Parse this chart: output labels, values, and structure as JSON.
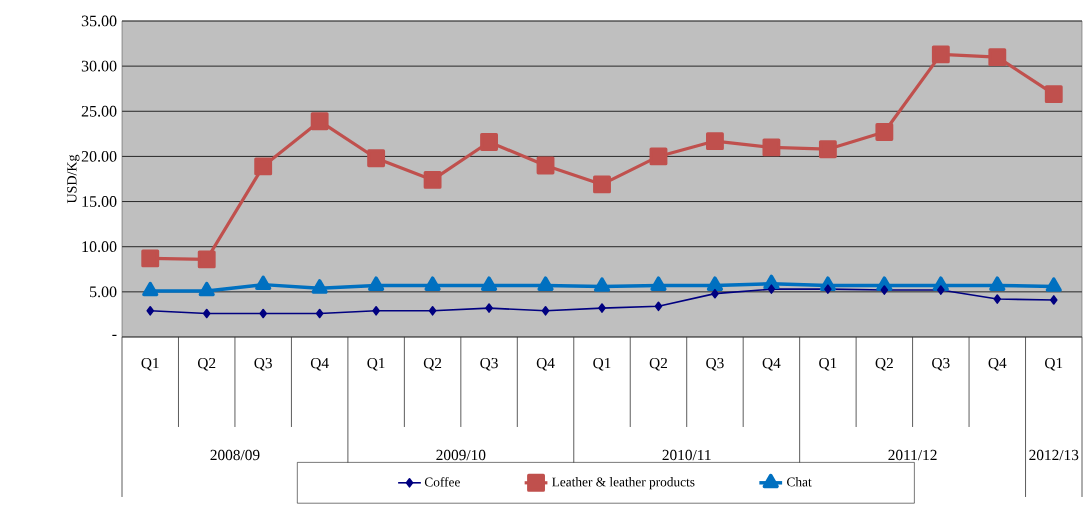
{
  "chart_data": {
    "type": "line",
    "ylabel": "USD/Kg",
    "categories": [
      "Q1",
      "Q2",
      "Q3",
      "Q4",
      "Q1",
      "Q2",
      "Q3",
      "Q4",
      "Q1",
      "Q2",
      "Q3",
      "Q4",
      "Q1",
      "Q2",
      "Q3",
      "Q4",
      "Q1"
    ],
    "annotations": [
      "2008/09",
      "2009/10",
      "2010/11",
      "2011/12",
      "2012/13"
    ],
    "series": [
      {
        "name": "Coffee",
        "color": "#000080",
        "marker": "diamond",
        "values": [
          2.9,
          2.6,
          2.6,
          2.6,
          2.9,
          2.9,
          3.2,
          2.9,
          3.2,
          3.4,
          4.8,
          5.3,
          5.3,
          5.2,
          5.2,
          4.2,
          4.1
        ]
      },
      {
        "name": "Leather & leather products",
        "color": "#c0504d",
        "marker": "square",
        "values": [
          8.7,
          8.6,
          18.9,
          23.9,
          19.8,
          17.4,
          21.6,
          19.0,
          16.9,
          20.0,
          21.7,
          21.0,
          20.8,
          22.7,
          31.3,
          31.0,
          26.9
        ]
      },
      {
        "name": "Chat",
        "color": "#0070c0",
        "marker": "triangle",
        "values": [
          5.1,
          5.1,
          5.8,
          5.4,
          5.7,
          5.7,
          5.7,
          5.7,
          5.6,
          5.7,
          5.7,
          5.9,
          5.7,
          5.7,
          5.7,
          5.7,
          5.6
        ]
      }
    ],
    "ylim": [
      0,
      35
    ],
    "yticks": [
      {
        "value": 0,
        "label": "-"
      },
      {
        "value": 5,
        "label": "5.00"
      },
      {
        "value": 10,
        "label": "10.00"
      },
      {
        "value": 15,
        "label": "15.00"
      },
      {
        "value": 20,
        "label": "20.00"
      },
      {
        "value": 25,
        "label": "25.00"
      },
      {
        "value": 30,
        "label": "30.00"
      },
      {
        "value": 35,
        "label": "35.00"
      }
    ],
    "grid": "y",
    "legend": "bottom"
  }
}
